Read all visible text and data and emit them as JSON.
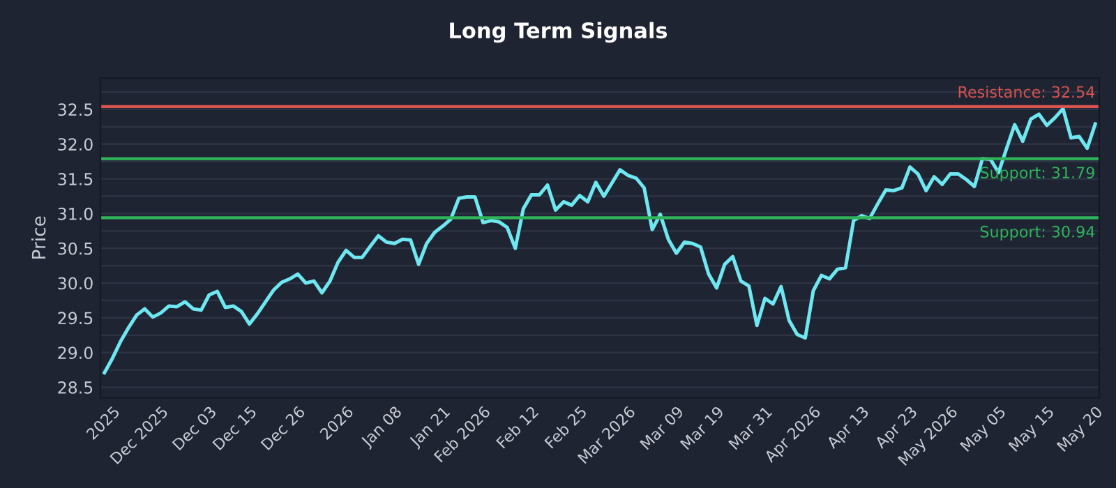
{
  "chart_data": {
    "type": "line",
    "title": "Long Term Signals",
    "ylabel": "Price",
    "categories": [
      null,
      "2025",
      null,
      null,
      null,
      null,
      null,
      "Dec 2025",
      null,
      null,
      null,
      null,
      null,
      "Dec 03",
      null,
      null,
      null,
      null,
      "Dec 15",
      null,
      null,
      null,
      null,
      null,
      "Dec 26",
      null,
      null,
      null,
      null,
      null,
      "2026",
      null,
      null,
      null,
      null,
      null,
      "Jan 08",
      null,
      null,
      null,
      null,
      null,
      "Jan 21",
      null,
      null,
      null,
      null,
      "Feb 2026",
      null,
      null,
      null,
      null,
      null,
      "Feb 12",
      null,
      null,
      null,
      null,
      null,
      "Feb 25",
      null,
      null,
      null,
      null,
      null,
      "Mar 2026",
      null,
      null,
      null,
      null,
      null,
      "Mar 09",
      null,
      null,
      null,
      null,
      "Mar 19",
      null,
      null,
      null,
      null,
      null,
      "Mar 31",
      null,
      null,
      null,
      null,
      null,
      "Apr 2026",
      null,
      null,
      null,
      null,
      null,
      "Apr 13",
      null,
      null,
      null,
      null,
      null,
      "Apr 23",
      null,
      null,
      null,
      null,
      "May 2026",
      null,
      null,
      null,
      null,
      null,
      "May 05",
      null,
      null,
      null,
      null,
      null,
      "May 15",
      null,
      null,
      null,
      null,
      null,
      "May 20"
    ],
    "series": [
      {
        "color": "#6ee7f0",
        "values": [
          28.71,
          28.92,
          29.16,
          29.36,
          29.54,
          29.63,
          29.51,
          29.57,
          29.67,
          29.66,
          29.73,
          29.63,
          29.61,
          29.83,
          29.88,
          29.65,
          29.67,
          29.59,
          29.41,
          29.56,
          29.73,
          29.9,
          30.01,
          30.06,
          30.13,
          30.0,
          30.03,
          29.86,
          30.03,
          30.3,
          30.47,
          30.37,
          30.37,
          30.53,
          30.68,
          30.59,
          30.57,
          30.63,
          30.62,
          30.27,
          30.57,
          30.73,
          30.82,
          30.92,
          31.22,
          31.24,
          31.24,
          30.87,
          30.9,
          30.88,
          30.8,
          30.5,
          31.07,
          31.27,
          31.27,
          31.41,
          31.05,
          31.17,
          31.12,
          31.26,
          31.17,
          31.45,
          31.25,
          31.44,
          31.63,
          31.55,
          31.51,
          31.37,
          30.77,
          30.99,
          30.63,
          30.43,
          30.59,
          30.57,
          30.52,
          30.13,
          29.93,
          30.27,
          30.38,
          30.03,
          29.96,
          29.39,
          29.78,
          29.7,
          29.95,
          29.46,
          29.26,
          29.21,
          29.89,
          30.11,
          30.06,
          30.2,
          30.22,
          30.9,
          30.97,
          30.93,
          31.14,
          31.34,
          31.33,
          31.37,
          31.67,
          31.57,
          31.33,
          31.53,
          31.42,
          31.57,
          31.57,
          31.49,
          31.39,
          31.79,
          31.78,
          31.59,
          31.94,
          32.28,
          32.04,
          32.36,
          32.43,
          32.27,
          32.38,
          32.51,
          32.09,
          32.11,
          31.94,
          32.29
        ]
      }
    ],
    "ylim": [
      28.35,
      32.95
    ],
    "yticks": [
      28.5,
      {
        "value": 28.75,
        "label": null
      },
      {
        "value": 29,
        "label": "29.0"
      },
      {
        "value": 29.25,
        "label": null
      },
      29.5,
      {
        "value": 29.75,
        "label": null
      },
      {
        "value": 30,
        "label": "30.0"
      },
      {
        "value": 30.25,
        "label": null
      },
      30.5,
      {
        "value": 30.75,
        "label": null
      },
      {
        "value": 31,
        "label": "31.0"
      },
      {
        "value": 31.25,
        "label": null
      },
      31.5,
      {
        "value": 31.75,
        "label": null
      },
      {
        "value": 32,
        "label": "32.0"
      },
      {
        "value": 32.25,
        "label": null
      },
      32.5,
      {
        "value": 32.75,
        "label": null
      }
    ],
    "grid": "y",
    "ref_lines": [
      {
        "axis": "y",
        "value": 32.54,
        "label": "Resistance: 32.54",
        "color": "#d9534f"
      },
      {
        "axis": "y",
        "value": 31.79,
        "label": "Support: 31.79",
        "color": "#2fb45a"
      },
      {
        "axis": "y",
        "value": 30.94,
        "label": "Support: 30.94",
        "color": "#2fb45a"
      }
    ]
  }
}
